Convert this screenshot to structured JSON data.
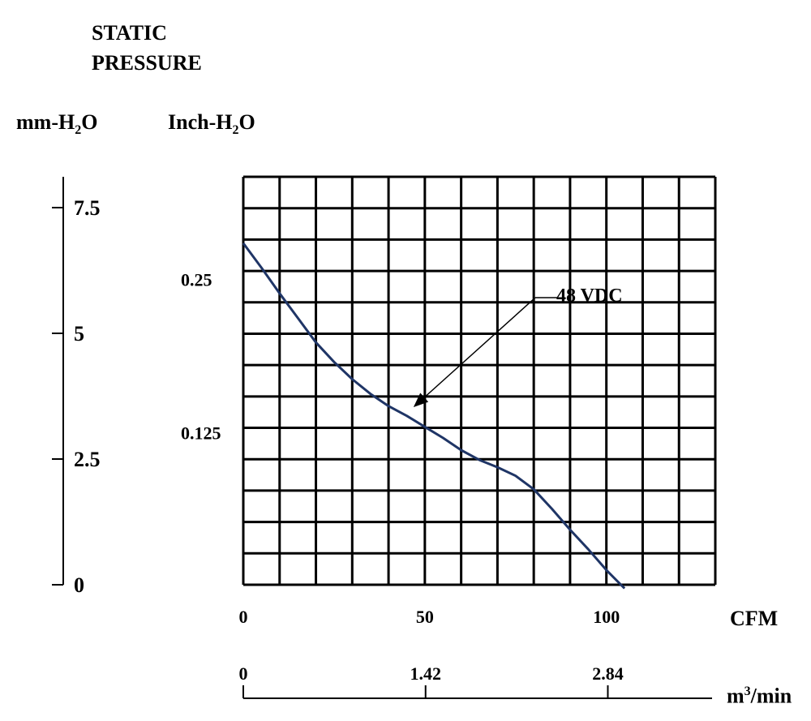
{
  "title_line1": "STATIC",
  "title_line2": "PRESSURE",
  "units": {
    "mm_label_main": "mm-H",
    "mm_label_sub": "2",
    "mm_label_tail": "O",
    "inch_label_main": "Inch-H",
    "inch_label_sub": "2",
    "inch_label_tail": "O",
    "cfm_label": "CFM",
    "m3_label_main": "m",
    "m3_label_sup": "3",
    "m3_label_tail": "/min"
  },
  "chart_data": {
    "type": "line",
    "series": [
      {
        "name": "48 VDC",
        "color": "#1f3566",
        "x": [
          0,
          5,
          10,
          15,
          20,
          25,
          30,
          35,
          40,
          45,
          50,
          55,
          60,
          65,
          70,
          75,
          80,
          85,
          90,
          95,
          100,
          105
        ],
        "y": [
          0.279,
          0.259,
          0.238,
          0.218,
          0.198,
          0.182,
          0.168,
          0.156,
          0.146,
          0.138,
          0.129,
          0.12,
          0.11,
          0.102,
          0.096,
          0.089,
          0.078,
          0.062,
          0.045,
          0.029,
          0.012,
          -0.003
        ]
      }
    ],
    "annotation": "48 VDC",
    "x_axis_cfm": {
      "label": "CFM",
      "ticks": [
        0,
        50,
        100
      ],
      "xlim": [
        0,
        130
      ]
    },
    "x_axis_m3": {
      "ticks": [
        "0",
        "1.42",
        "2.84"
      ],
      "tick_cfm_positions": [
        0,
        50.2,
        100.4
      ]
    },
    "y_axis_inch": {
      "ticks": [
        "0.25",
        "0.125"
      ],
      "tick_values": [
        0.25,
        0.125
      ],
      "ylim": [
        0,
        0.3333
      ]
    },
    "y_axis_mm": {
      "ticks": [
        "7.5",
        "5",
        "2.5",
        "0"
      ],
      "tick_values": [
        7.5,
        5,
        2.5,
        0
      ],
      "ylim": [
        0,
        7.5
      ]
    },
    "grid": true
  }
}
